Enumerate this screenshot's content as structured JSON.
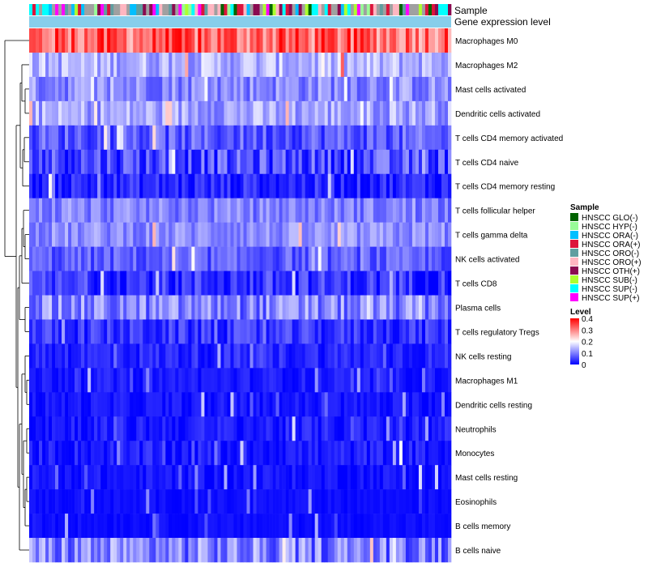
{
  "chart_data": {
    "type": "heatmap",
    "title": "",
    "annotations": [
      "Sample",
      "Gene expression level"
    ],
    "value_range": [
      0,
      0.4
    ],
    "rows": [
      {
        "label": "Macrophages M0",
        "mean": 0.32,
        "spread": 0.08
      },
      {
        "label": "Macrophages M2",
        "mean": 0.14,
        "spread": 0.05
      },
      {
        "label": "Mast cells activated",
        "mean": 0.11,
        "spread": 0.05
      },
      {
        "label": "Dendritic cells activated",
        "mean": 0.13,
        "spread": 0.05
      },
      {
        "label": "T cells CD4 memory activated",
        "mean": 0.07,
        "spread": 0.05
      },
      {
        "label": "T cells CD4 naive",
        "mean": 0.06,
        "spread": 0.06
      },
      {
        "label": "T cells CD4 memory resting",
        "mean": 0.03,
        "spread": 0.04
      },
      {
        "label": "T cells follicular helper",
        "mean": 0.1,
        "spread": 0.04
      },
      {
        "label": "T cells gamma delta",
        "mean": 0.11,
        "spread": 0.04
      },
      {
        "label": "NK cells activated",
        "mean": 0.07,
        "spread": 0.04
      },
      {
        "label": "T cells CD8",
        "mean": 0.04,
        "spread": 0.05
      },
      {
        "label": "Plasma cells",
        "mean": 0.1,
        "spread": 0.06
      },
      {
        "label": "T cells regulatory  Tregs",
        "mean": 0.04,
        "spread": 0.04
      },
      {
        "label": "NK cells resting",
        "mean": 0.03,
        "spread": 0.03
      },
      {
        "label": "Macrophages M1",
        "mean": 0.02,
        "spread": 0.02
      },
      {
        "label": "Dendritic cells resting",
        "mean": 0.015,
        "spread": 0.02
      },
      {
        "label": "Neutrophils",
        "mean": 0.02,
        "spread": 0.03
      },
      {
        "label": "Monocytes",
        "mean": 0.02,
        "spread": 0.03
      },
      {
        "label": "Mast cells resting",
        "mean": 0.015,
        "spread": 0.02
      },
      {
        "label": "Eosinophils",
        "mean": 0.01,
        "spread": 0.01
      },
      {
        "label": "B cells memory",
        "mean": 0.01,
        "spread": 0.01
      },
      {
        "label": "B cells naive",
        "mean": 0.1,
        "spread": 0.07
      }
    ],
    "n_samples": 130,
    "sample_legend": {
      "title": "Sample",
      "entries": [
        {
          "label": "HNSCC GLO(-)",
          "color": "#006400"
        },
        {
          "label": "HNSCC HYP(-)",
          "color": "#98FB98"
        },
        {
          "label": "HNSCC ORA(-)",
          "color": "#00BFFF"
        },
        {
          "label": "HNSCC ORA(+)",
          "color": "#DC143C"
        },
        {
          "label": "HNSCC ORO(-)",
          "color": "#5F9EA0"
        },
        {
          "label": "HNSCC ORO(+)",
          "color": "#FFB6C1"
        },
        {
          "label": "HNSCC OTH(+)",
          "color": "#8B0A50"
        },
        {
          "label": "HNSCC SUB(-)",
          "color": "#ADFF2F"
        },
        {
          "label": "HNSCC SUP(-)",
          "color": "#00FFFF"
        },
        {
          "label": "HNSCC SUP(+)",
          "color": "#FF00FF"
        }
      ]
    },
    "level_legend": {
      "title": "Level",
      "ticks": [
        "0.4",
        "0.3",
        "0.2",
        "0.1",
        "0"
      ],
      "tick_values": [
        0.4,
        0.3,
        0.2,
        0.1,
        0
      ]
    },
    "gene_expression_color": "#87CEEB",
    "colors": {
      "low": "#0000FF",
      "mid": "#FFFFFF",
      "high": "#FF0000",
      "sample_gray": "#A0A0A0"
    }
  }
}
